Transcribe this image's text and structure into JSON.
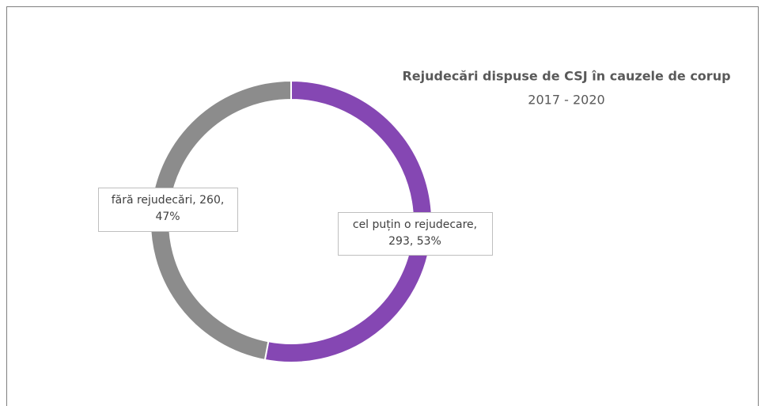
{
  "chart_data": {
    "type": "pie",
    "title": "Rejudecări dispuse de CSJ în cauzele de corup",
    "subtitle": "2017 - 2020",
    "values": [
      293,
      260
    ],
    "value_labels": [
      [
        "cel puțin o rejudecare,",
        "293, 53%"
      ],
      [
        "fără rejudecări, 260,",
        "47%"
      ]
    ],
    "colors": [
      "#8547b3",
      "#8c8c8c"
    ],
    "donut": true
  }
}
